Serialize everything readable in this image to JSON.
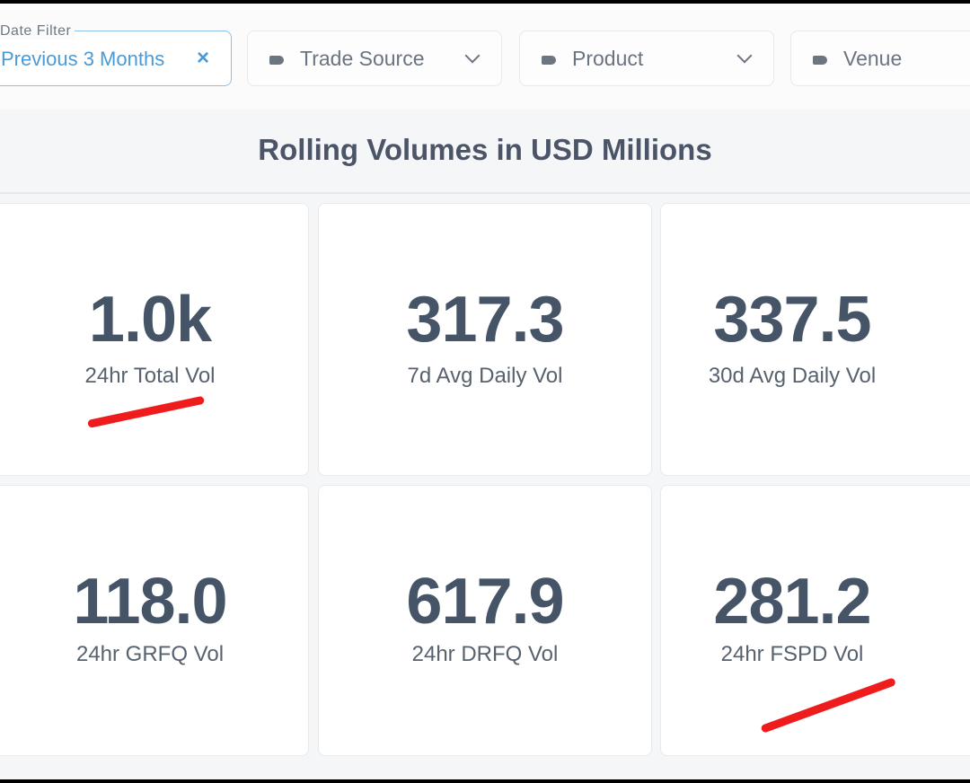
{
  "filters": {
    "date": {
      "caption": "Date Filter",
      "value": "Previous 3 Months",
      "clear_icon": "close-icon",
      "clear_glyph": "×"
    },
    "trade_source": {
      "label": "Trade Source",
      "icon": "tag-icon"
    },
    "product": {
      "label": "Product",
      "icon": "tag-icon"
    },
    "venue": {
      "label": "Venue",
      "icon": "tag-icon"
    }
  },
  "section": {
    "title": "Rolling Volumes in USD Millions"
  },
  "metrics": [
    {
      "value": "1.0k",
      "label": "24hr Total Vol"
    },
    {
      "value": "317.3",
      "label": "7d Avg Daily Vol"
    },
    {
      "value": "337.5",
      "label": "30d Avg Daily Vol"
    },
    {
      "value": "118.0",
      "label": "24hr GRFQ Vol"
    },
    {
      "value": "617.9",
      "label": "24hr DRFQ Vol"
    },
    {
      "value": "281.2",
      "label": "24hr FSPD Vol"
    }
  ],
  "colors": {
    "accent": "#4a9ad8",
    "value_text": "#465467",
    "annotation": "#ee1c1c"
  }
}
